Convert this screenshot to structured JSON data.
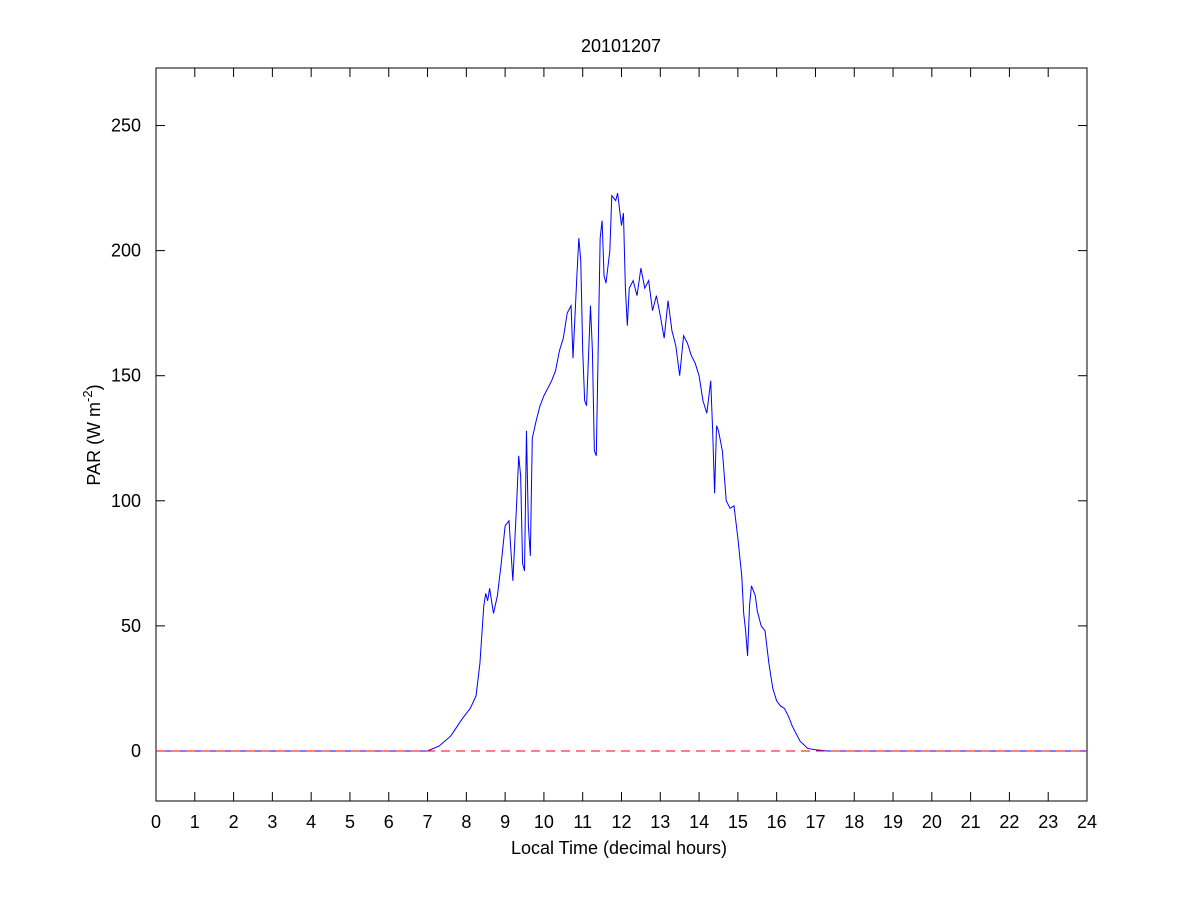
{
  "chart_data": {
    "type": "line",
    "title": "20101207",
    "xlabel": "Local Time (decimal hours)",
    "ylabel": [
      "PAR (W m",
      "-2",
      ")"
    ],
    "xlim": [
      0,
      24
    ],
    "xticks": [
      0,
      1,
      2,
      3,
      4,
      5,
      6,
      7,
      8,
      9,
      10,
      11,
      12,
      13,
      14,
      15,
      16,
      17,
      18,
      19,
      20,
      21,
      22,
      23,
      24
    ],
    "ylim": [
      -20,
      273
    ],
    "yticks": [
      0,
      50,
      100,
      150,
      200,
      250
    ],
    "reference_line": {
      "value": 0,
      "color": "#ff0000",
      "style": "dashed"
    },
    "series": [
      {
        "color": "#0000ff",
        "x": [
          0,
          7,
          7.3,
          7.6,
          7.9,
          8.1,
          8.25,
          8.35,
          8.45,
          8.5,
          8.55,
          8.6,
          8.7,
          8.8,
          8.9,
          9,
          9.1,
          9.2,
          9.3,
          9.35,
          9.4,
          9.45,
          9.5,
          9.55,
          9.6,
          9.65,
          9.7,
          9.8,
          9.9,
          10,
          10.1,
          10.2,
          10.3,
          10.4,
          10.5,
          10.6,
          10.7,
          10.75,
          10.85,
          10.9,
          10.95,
          11,
          11.05,
          11.1,
          11.2,
          11.25,
          11.3,
          11.35,
          11.45,
          11.5,
          11.55,
          11.6,
          11.7,
          11.75,
          11.85,
          11.9,
          12,
          12.05,
          12.1,
          12.15,
          12.2,
          12.3,
          12.4,
          12.5,
          12.6,
          12.7,
          12.8,
          12.9,
          13,
          13.1,
          13.2,
          13.3,
          13.4,
          13.5,
          13.6,
          13.7,
          13.8,
          13.9,
          14,
          14.1,
          14.2,
          14.3,
          14.35,
          14.4,
          14.45,
          14.5,
          14.6,
          14.7,
          14.8,
          14.9,
          15,
          15.1,
          15.15,
          15.2,
          15.25,
          15.3,
          15.35,
          15.45,
          15.5,
          15.6,
          15.7,
          15.8,
          15.9,
          16,
          16.1,
          16.2,
          16.3,
          16.4,
          16.6,
          16.8,
          17,
          17.3,
          24
        ],
        "values": [
          0,
          0,
          2,
          6,
          13,
          17,
          22,
          35,
          58,
          63,
          60,
          65,
          55,
          62,
          75,
          90,
          92,
          68,
          100,
          118,
          110,
          75,
          72,
          128,
          90,
          78,
          125,
          132,
          138,
          142,
          145,
          148,
          152,
          160,
          165,
          175,
          178,
          157,
          190,
          205,
          196,
          160,
          140,
          138,
          178,
          160,
          120,
          118,
          205,
          212,
          190,
          187,
          200,
          222,
          220,
          223,
          210,
          215,
          185,
          170,
          185,
          188,
          182,
          193,
          185,
          188,
          176,
          182,
          174,
          165,
          180,
          168,
          162,
          150,
          166,
          163,
          158,
          155,
          150,
          140,
          135,
          148,
          128,
          103,
          130,
          128,
          120,
          100,
          97,
          98,
          85,
          70,
          55,
          48,
          38,
          58,
          66,
          62,
          56,
          50,
          48,
          35,
          25,
          20,
          18,
          17,
          14,
          10,
          4,
          1,
          0.5,
          0,
          0
        ]
      }
    ]
  }
}
